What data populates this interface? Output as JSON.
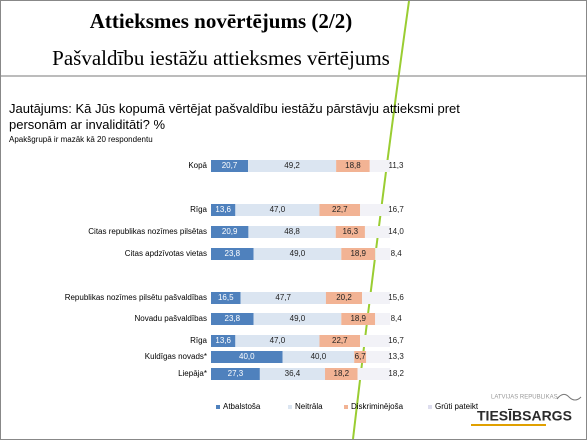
{
  "chart_data": {
    "type": "stacked-barh",
    "title": "Attieksmes novērtējums (2/2)",
    "subtitle": "Pašvaldību iestāžu attieksmes vērtējums",
    "question": "Jautājums: Kā Jūs kopumā vērtējat pašvaldību iestāžu pārstāvju attieksmi pret personām ar invaliditāti? %",
    "note": "Apakšgrupā ir mazāk kā 20 respondentu",
    "categories": [
      "Kopā",
      "Rīga",
      "Citas republikas nozīmes pilsētas",
      "Citas apdzīvotas vietas",
      "Republikas nozīmes pilsētu pašvaldības",
      "Novadu pašvaldības",
      "Rīga",
      "Kuldīgas novads*",
      "Liepāja*"
    ],
    "xlim": [
      0,
      100
    ],
    "legend": "bottom",
    "series": [
      {
        "name": "Atbalstoša",
        "color": "#4f81bd",
        "values": [
          20.7,
          13.6,
          20.9,
          23.8,
          16.5,
          23.8,
          13.6,
          40,
          27.3
        ],
        "value_labels": [
          "20,7",
          "13,6",
          "20,9",
          "23,8",
          "16,5",
          "23,8",
          "13,6",
          "40,0",
          "27,3"
        ]
      },
      {
        "name": "Neitrāla",
        "color": "#dbe5f1",
        "values": [
          49.2,
          47,
          48.8,
          49,
          47.7,
          49,
          47,
          40,
          36.4
        ],
        "value_labels": [
          "49,2",
          "47,0",
          "48,8",
          "49,0",
          "47,7",
          "49,0",
          "47,0",
          "40,0",
          "36,4"
        ]
      },
      {
        "name": "Diskriminējoša",
        "color": "#f2b394",
        "values": [
          18.8,
          22.7,
          16.3,
          18.9,
          20.2,
          18.9,
          22.7,
          6.7,
          18.2
        ],
        "value_labels": [
          "18,8",
          "22,7",
          "16,3",
          "18,9",
          "20,2",
          "18,9",
          "22,7",
          "6,7",
          "18,2"
        ]
      },
      {
        "name": "Grūti pateikt",
        "color": "#f2f2f7",
        "values": [
          11.3,
          16.7,
          14,
          8.4,
          15.6,
          8.4,
          16.7,
          13.3,
          18.2
        ],
        "value_labels": [
          "11,3",
          "16,7",
          "14,0",
          "8,4",
          "15,6",
          "8,4",
          "16,7",
          "13,3",
          "18,2"
        ]
      }
    ]
  },
  "logo": {
    "top": "LATVIJAS REPUBLIKAS",
    "name": "TIESĪBSARGS"
  }
}
